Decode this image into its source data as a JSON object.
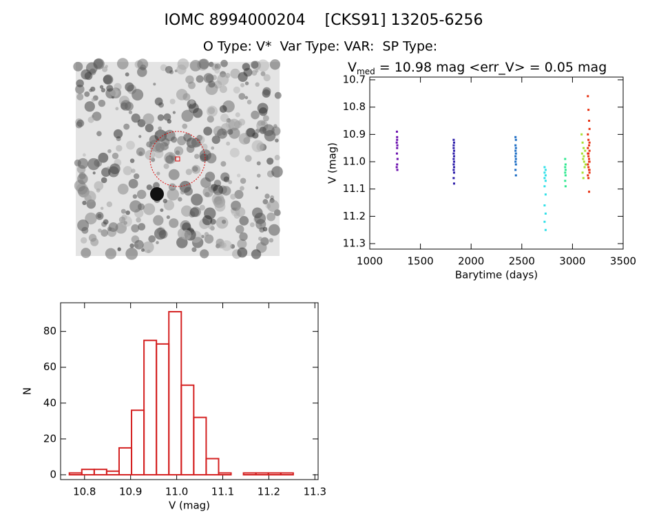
{
  "header": {
    "title": "IOMC 8994000204    [CKS91] 13205-6256",
    "subtitle": "O Type: V*  Var Type: VAR:  SP Type:"
  },
  "chart_data": [
    {
      "type": "scatter",
      "title": [
        "V",
        "med",
        " = 10.98 mag <err_V> = 0.05 mag"
      ],
      "xlabel": "Barytime (days)",
      "ylabel": "V (mag)",
      "xlim": [
        1000,
        3500
      ],
      "xticks": [
        1000,
        1500,
        2000,
        2500,
        3000,
        3500
      ],
      "ylim": [
        11.32,
        10.69
      ],
      "yticks": [
        10.7,
        10.8,
        10.9,
        {
          "value": 11,
          "label": "11.0"
        },
        11.1,
        11.2,
        11.3
      ],
      "series": [
        {
          "color": "#6a0dad",
          "x": [
            1268,
            1270,
            1266,
            1272,
            1270,
            1268,
            1274,
            1270,
            1266,
            1272,
            1270
          ],
          "values": [
            10.89,
            10.91,
            10.93,
            10.94,
            10.95,
            10.97,
            10.99,
            11.01,
            11.02,
            11.03,
            10.92
          ]
        },
        {
          "color": "#2a1aa8",
          "x": [
            1828,
            1832,
            1828,
            1832,
            1828,
            1832,
            1828,
            1832,
            1828,
            1832,
            1828,
            1832,
            1828,
            1832,
            1828,
            1832
          ],
          "values": [
            10.92,
            10.93,
            10.95,
            10.96,
            10.97,
            10.98,
            10.99,
            11.0,
            11.01,
            11.02,
            11.03,
            11.04,
            11.06,
            11.08,
            10.94,
            11.0
          ]
        },
        {
          "color": "#1a6cc4",
          "x": [
            2438,
            2442,
            2438,
            2442,
            2438,
            2442,
            2438,
            2442,
            2438,
            2442,
            2438,
            2442
          ],
          "values": [
            10.91,
            10.92,
            10.94,
            10.95,
            10.96,
            10.97,
            10.98,
            10.99,
            11.0,
            11.01,
            11.03,
            11.05
          ]
        },
        {
          "color": "#30e0e8",
          "x": [
            2725,
            2735,
            2725,
            2735,
            2725,
            2735,
            2725,
            2735,
            2725,
            2735,
            2725,
            2735
          ],
          "values": [
            11.02,
            11.03,
            11.04,
            11.05,
            11.06,
            11.07,
            11.09,
            11.12,
            11.16,
            11.19,
            11.22,
            11.25
          ]
        },
        {
          "color": "#30e890",
          "x": [
            2928,
            2932,
            2928,
            2932,
            2928,
            2932,
            2928,
            2932
          ],
          "values": [
            10.99,
            11.01,
            11.02,
            11.03,
            11.04,
            11.05,
            11.07,
            11.09
          ]
        },
        {
          "color": "#a8e030",
          "x": [
            3090,
            3100,
            3110,
            3095,
            3105,
            3115,
            3120,
            3100,
            3108,
            3125,
            3112,
            3130
          ],
          "values": [
            10.9,
            10.93,
            10.95,
            10.97,
            10.99,
            11.0,
            11.02,
            11.04,
            11.06,
            10.96,
            10.98,
            11.01
          ]
        },
        {
          "color": "#e83010",
          "x": [
            3152,
            3158,
            3164,
            3168,
            3152,
            3158,
            3164,
            3168,
            3152,
            3158,
            3164,
            3168,
            3152,
            3158,
            3164,
            3168,
            3152,
            3158,
            3164,
            3168,
            3152,
            3158,
            3164,
            3168
          ],
          "values": [
            10.76,
            10.81,
            10.85,
            10.88,
            10.9,
            10.92,
            10.94,
            10.96,
            10.97,
            10.98,
            10.99,
            11.0,
            11.01,
            11.02,
            11.03,
            11.04,
            11.05,
            11.06,
            11.11,
            10.93,
            10.95,
            10.97,
            11.0,
            11.03
          ]
        }
      ]
    },
    {
      "type": "histogram",
      "xlabel": "V (mag)",
      "ylabel": "N",
      "color": "#d42020",
      "bins": [
        10.767,
        10.794,
        10.821,
        10.848,
        10.875,
        10.902,
        10.929,
        10.956,
        10.983,
        11.01,
        11.037,
        11.064,
        11.091,
        11.118,
        11.145,
        11.172,
        11.199,
        11.226,
        11.253
      ],
      "values": [
        1,
        3,
        3,
        2,
        15,
        36,
        75,
        73,
        91,
        50,
        32,
        9,
        1,
        0,
        1,
        1,
        1,
        1
      ],
      "xlim": [
        10.748,
        11.307
      ],
      "xticks": [
        10.8,
        10.9,
        {
          "value": 11,
          "label": "11.0"
        },
        11.1,
        11.2,
        11.3
      ],
      "ylim": [
        -2.7,
        96
      ],
      "yticks": [
        0,
        20,
        40,
        60,
        80
      ]
    }
  ]
}
